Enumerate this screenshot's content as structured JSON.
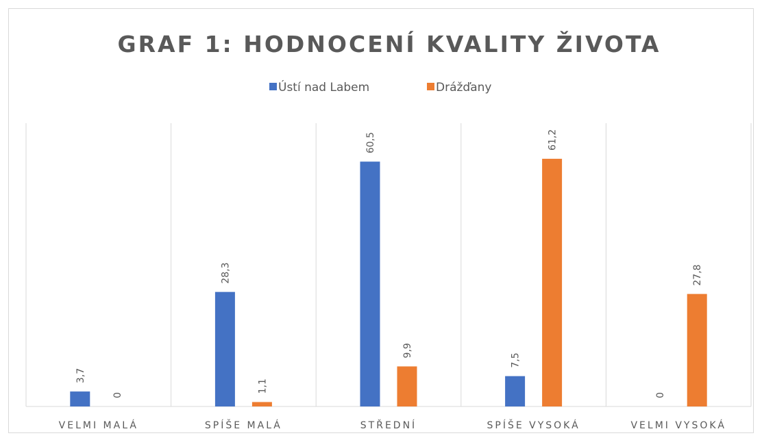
{
  "chart_data": {
    "type": "bar",
    "title": "GRAF 1: HODNOCENÍ KVALITY ŽIVOTA",
    "categories": [
      "VELMI MALÁ",
      "SPÍŠE MALÁ",
      "STŘEDNÍ",
      "SPÍŠE VYSOKÁ",
      "VELMI VYSOKÁ"
    ],
    "series": [
      {
        "name": "Ústí nad Labem",
        "color": "#4472c4",
        "values": [
          3.7,
          28.3,
          60.5,
          7.5,
          0
        ],
        "value_labels": [
          "3,7",
          "28,3",
          "60,5",
          "7,5",
          "0"
        ]
      },
      {
        "name": "Drážďany",
        "color": "#ed7d31",
        "values": [
          0,
          1.1,
          9.9,
          61.2,
          27.8
        ],
        "value_labels": [
          "0",
          "1,1",
          "9,9",
          "61,2",
          "27,8"
        ]
      }
    ],
    "ylim": [
      0,
      70
    ],
    "legend": "top"
  }
}
